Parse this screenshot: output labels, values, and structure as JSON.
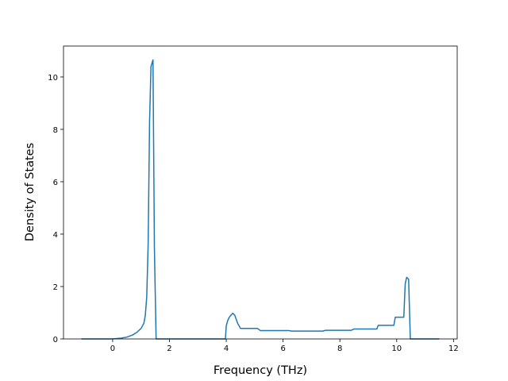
{
  "chart_data": {
    "type": "line",
    "x_label": "Frequency (THz)",
    "y_label": "Density of States",
    "x": [
      -1.1,
      0,
      0.3,
      0.5,
      0.7,
      0.85,
      1.0,
      1.1,
      1.15,
      1.2,
      1.25,
      1.3,
      1.35,
      1.42,
      1.47,
      1.53,
      2,
      3,
      3.97,
      4.0,
      4.05,
      4.12,
      4.23,
      4.3,
      4.4,
      4.5,
      5.1,
      5.2,
      6.2,
      6.3,
      7.4,
      7.5,
      8.4,
      8.5,
      9.3,
      9.35,
      9.9,
      9.95,
      10.25,
      10.3,
      10.35,
      10.42,
      10.48,
      11.5
    ],
    "series": [
      {
        "color": "#1f77b4",
        "values": [
          0,
          0,
          0.03,
          0.07,
          0.15,
          0.25,
          0.4,
          0.6,
          0.9,
          1.6,
          3.6,
          8.3,
          10.4,
          10.65,
          3.5,
          0,
          0,
          0,
          0,
          0.5,
          0.7,
          0.85,
          0.98,
          0.9,
          0.6,
          0.4,
          0.4,
          0.32,
          0.32,
          0.3,
          0.3,
          0.33,
          0.33,
          0.38,
          0.38,
          0.52,
          0.52,
          0.83,
          0.83,
          2.1,
          2.35,
          2.28,
          0,
          0
        ]
      }
    ],
    "xlim": [
      -1.73,
      12.13
    ],
    "ylim": [
      0,
      11.18
    ],
    "xticks": [
      0,
      2,
      4,
      6,
      8,
      10,
      12
    ],
    "yticks": [
      0,
      2,
      4,
      6,
      8,
      10
    ]
  }
}
